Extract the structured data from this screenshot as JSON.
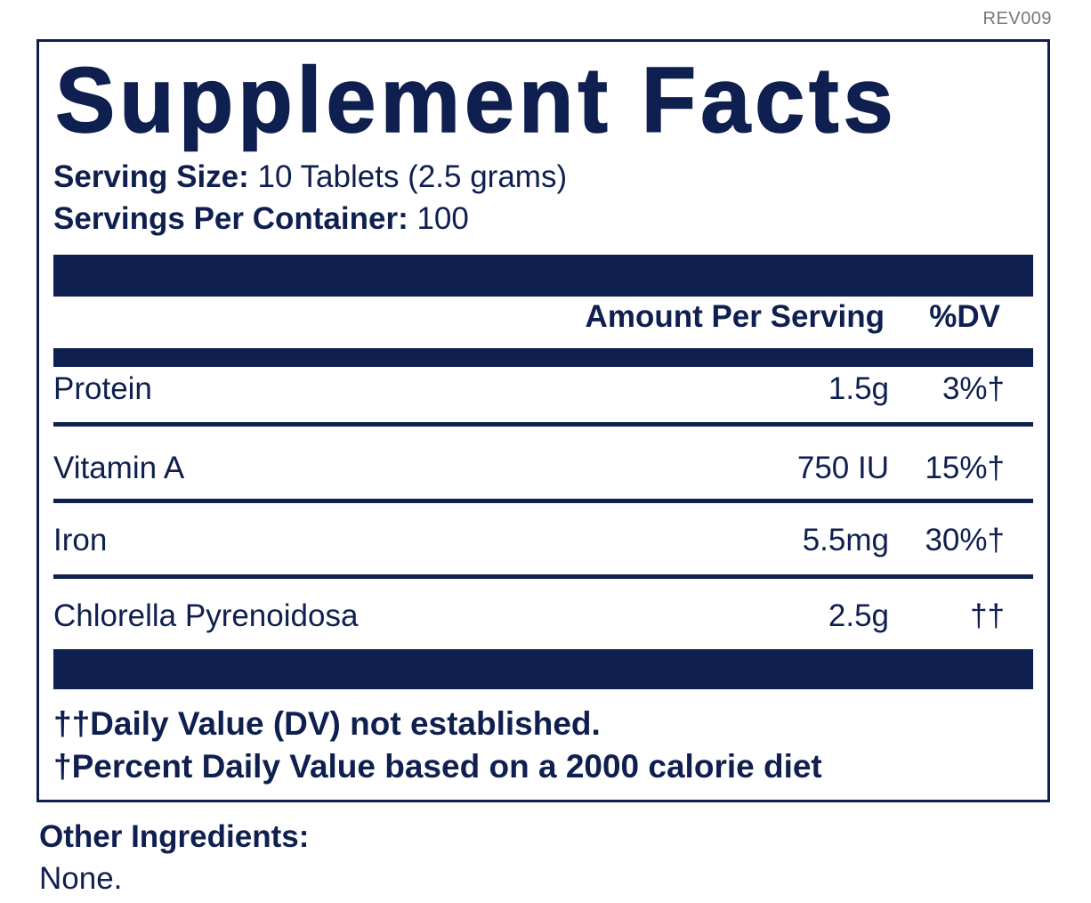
{
  "revision": "REV009",
  "title": "Supplement Facts",
  "serving": {
    "size_label": "Serving Size:",
    "size_value": " 10 Tablets (2.5 grams)",
    "servings_label": "Servings Per Container:",
    "servings_value": " 100"
  },
  "columns": {
    "amount": "Amount Per Serving",
    "dv": "%DV"
  },
  "rows": [
    {
      "name": "Protein",
      "amount": "1.5g",
      "dv": "3%†"
    },
    {
      "name": "Vitamin A",
      "amount": "750 IU",
      "dv": "15%†"
    },
    {
      "name": "Iron",
      "amount": "5.5mg",
      "dv": "30%†"
    },
    {
      "name": "Chlorella Pyrenoidosa",
      "amount": "2.5g",
      "dv": "††"
    }
  ],
  "footnotes": [
    "††Daily Value (DV) not established.",
    "†Percent Daily Value based on a 2000 calorie diet"
  ],
  "other_ingredients": {
    "label": "Other Ingredients:",
    "value": "None."
  },
  "colors": {
    "ink": "#0f1f4f",
    "revision_text": "#777777"
  }
}
